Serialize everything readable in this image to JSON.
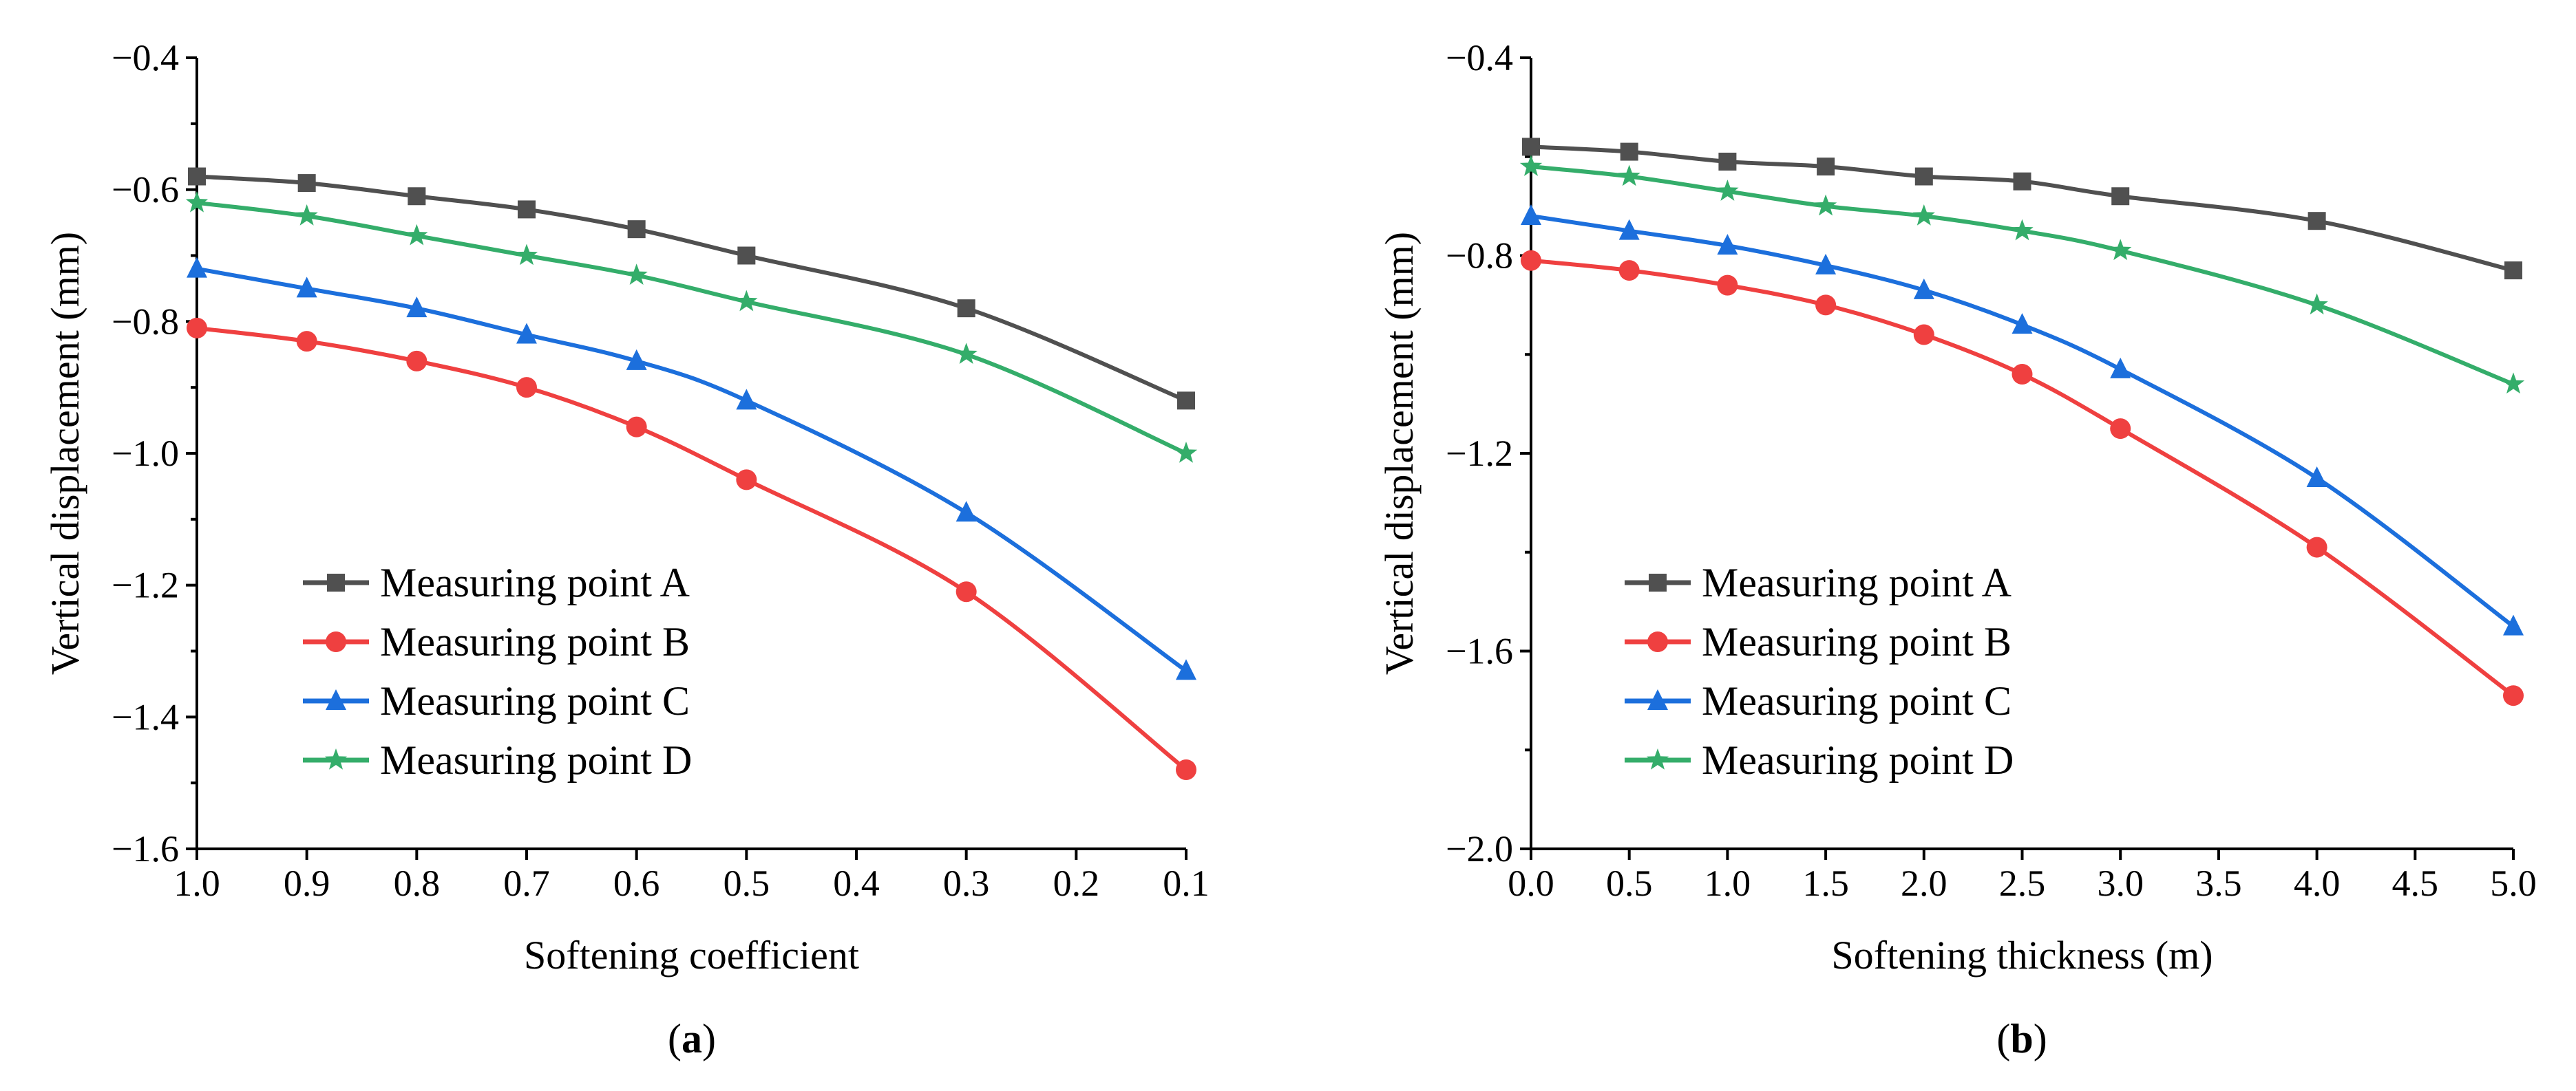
{
  "colors": {
    "A": "#505050",
    "B": "#ef4040",
    "C": "#1c6fdc",
    "D": "#34ad6a"
  },
  "chart_data": [
    {
      "type": "line",
      "panel_label": "a",
      "xlabel": "Softening coefficient",
      "ylabel": "Vertical displacement (mm)",
      "xlim": [
        1.0,
        0.1
      ],
      "ylim": [
        -1.6,
        -0.4
      ],
      "xticks": [
        "1.0",
        "0.9",
        "0.8",
        "0.7",
        "0.6",
        "0.5",
        "0.4",
        "0.3",
        "0.2",
        "0.1"
      ],
      "yticks": [
        "−1.6",
        "−1.4",
        "−1.2",
        "−1.0",
        "−0.8",
        "−0.6",
        "−0.4"
      ],
      "legend_position": "bottom-left",
      "x": [
        1.0,
        0.9,
        0.8,
        0.7,
        0.6,
        0.5,
        0.3,
        0.1
      ],
      "series": [
        {
          "name": "Measuring point A",
          "key": "A",
          "marker": "square",
          "values": [
            -0.58,
            -0.59,
            -0.61,
            -0.63,
            -0.66,
            -0.7,
            -0.78,
            -0.92
          ]
        },
        {
          "name": "Measuring point B",
          "key": "B",
          "marker": "circle",
          "values": [
            -0.81,
            -0.83,
            -0.86,
            -0.9,
            -0.96,
            -1.04,
            -1.21,
            -1.48
          ]
        },
        {
          "name": "Measuring point C",
          "key": "C",
          "marker": "triangle",
          "values": [
            -0.72,
            -0.75,
            -0.78,
            -0.82,
            -0.86,
            -0.92,
            -1.09,
            -1.33
          ]
        },
        {
          "name": "Measuring point D",
          "key": "D",
          "marker": "star",
          "values": [
            -0.62,
            -0.64,
            -0.67,
            -0.7,
            -0.73,
            -0.77,
            -0.85,
            -1.0
          ]
        }
      ]
    },
    {
      "type": "line",
      "panel_label": "b",
      "xlabel": "Softening thickness (m)",
      "ylabel": "Vertical displacement (mm)",
      "xlim": [
        0.0,
        5.0
      ],
      "ylim": [
        -2.0,
        -0.4
      ],
      "xticks": [
        "0.0",
        "0.5",
        "1.0",
        "1.5",
        "2.0",
        "2.5",
        "3.0",
        "3.5",
        "4.0",
        "4.5",
        "5.0"
      ],
      "yticks": [
        "−2.0",
        "−1.6",
        "−1.2",
        "−0.8",
        "−0.4"
      ],
      "legend_position": "bottom-left",
      "x": [
        0.0,
        0.5,
        1.0,
        1.5,
        2.0,
        2.5,
        3.0,
        4.0,
        5.0
      ],
      "series": [
        {
          "name": "Measuring point A",
          "key": "A",
          "marker": "square",
          "values": [
            -0.58,
            -0.59,
            -0.61,
            -0.62,
            -0.64,
            -0.65,
            -0.68,
            -0.73,
            -0.83
          ]
        },
        {
          "name": "Measuring point B",
          "key": "B",
          "marker": "circle",
          "values": [
            -0.81,
            -0.83,
            -0.86,
            -0.9,
            -0.96,
            -1.04,
            -1.15,
            -1.39,
            -1.69
          ]
        },
        {
          "name": "Measuring point C",
          "key": "C",
          "marker": "triangle",
          "values": [
            -0.72,
            -0.75,
            -0.78,
            -0.82,
            -0.87,
            -0.94,
            -1.03,
            -1.25,
            -1.55
          ]
        },
        {
          "name": "Measuring point D",
          "key": "D",
          "marker": "star",
          "values": [
            -0.62,
            -0.64,
            -0.67,
            -0.7,
            -0.72,
            -0.75,
            -0.79,
            -0.9,
            -1.06
          ]
        }
      ]
    }
  ]
}
